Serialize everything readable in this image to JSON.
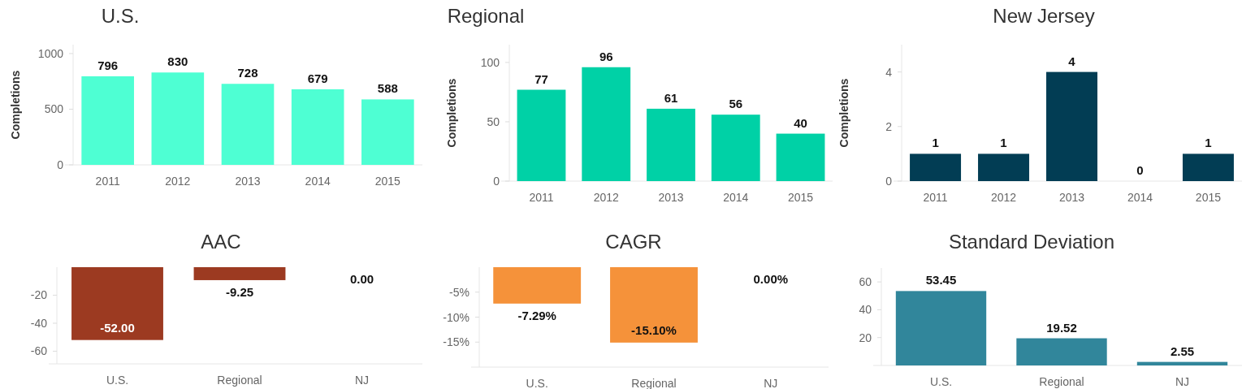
{
  "chart_data": [
    {
      "type": "bar",
      "title": "U.S.",
      "ylabel": "Completions",
      "categories": [
        "2011",
        "2012",
        "2013",
        "2014",
        "2015"
      ],
      "values": [
        796,
        830,
        728,
        679,
        588
      ],
      "color": "#4effd3",
      "ylim": [
        0,
        1080
      ],
      "yticks": [
        0,
        500,
        1000
      ],
      "data_labels": true,
      "grid": false
    },
    {
      "type": "bar",
      "title": "Regional",
      "ylabel": "Completions",
      "categories": [
        "2011",
        "2012",
        "2013",
        "2014",
        "2015"
      ],
      "values": [
        77,
        96,
        61,
        56,
        40
      ],
      "color": "#00d1a6",
      "ylim": [
        0,
        115
      ],
      "yticks": [
        0,
        50,
        100
      ],
      "data_labels": true,
      "grid": false
    },
    {
      "type": "bar",
      "title": "New Jersey",
      "ylabel": "Completions",
      "categories": [
        "2011",
        "2012",
        "2013",
        "2014",
        "2015"
      ],
      "values": [
        1,
        1,
        4,
        0,
        1
      ],
      "color": "#023d54",
      "ylim": [
        0,
        5
      ],
      "yticks": [
        0,
        2,
        4
      ],
      "data_labels": true,
      "grid": false
    },
    {
      "type": "bar",
      "title": "AAC",
      "categories": [
        "U.S.",
        "Regional",
        "NJ"
      ],
      "values": [
        -52,
        -9.25,
        0
      ],
      "colors": [
        "#9c3a21",
        "#9c3a21",
        "#2e86a0"
      ],
      "ylim": [
        -69,
        0
      ],
      "yticks": [
        -20,
        -40,
        -60
      ],
      "value_labels": [
        "-52.00",
        "-9.25",
        "0.00"
      ],
      "grid": false
    },
    {
      "type": "bar",
      "title": "CAGR",
      "categories": [
        "U.S.",
        "Regional",
        "NJ"
      ],
      "values": [
        -7.29,
        -15.1,
        0
      ],
      "colors": [
        "#f5923a",
        "#f5923a",
        "#7fb5c8"
      ],
      "ylim": [
        -20,
        0
      ],
      "yticks": [
        {
          "value": -5,
          "label": "-5%"
        },
        {
          "value": -10,
          "label": "-10%"
        },
        {
          "value": -15,
          "label": "-15%"
        }
      ],
      "value_labels": [
        "-7.29%",
        "-15.10%",
        "0.00%"
      ],
      "grid": false
    },
    {
      "type": "bar",
      "title": "Standard Deviation",
      "categories": [
        "U.S.",
        "Regional",
        "NJ"
      ],
      "values": [
        53.45,
        19.52,
        2.55
      ],
      "color": "#31869b",
      "ylim": [
        0,
        70
      ],
      "yticks": [
        20,
        40,
        60
      ],
      "data_labels": true,
      "grid": false
    }
  ]
}
